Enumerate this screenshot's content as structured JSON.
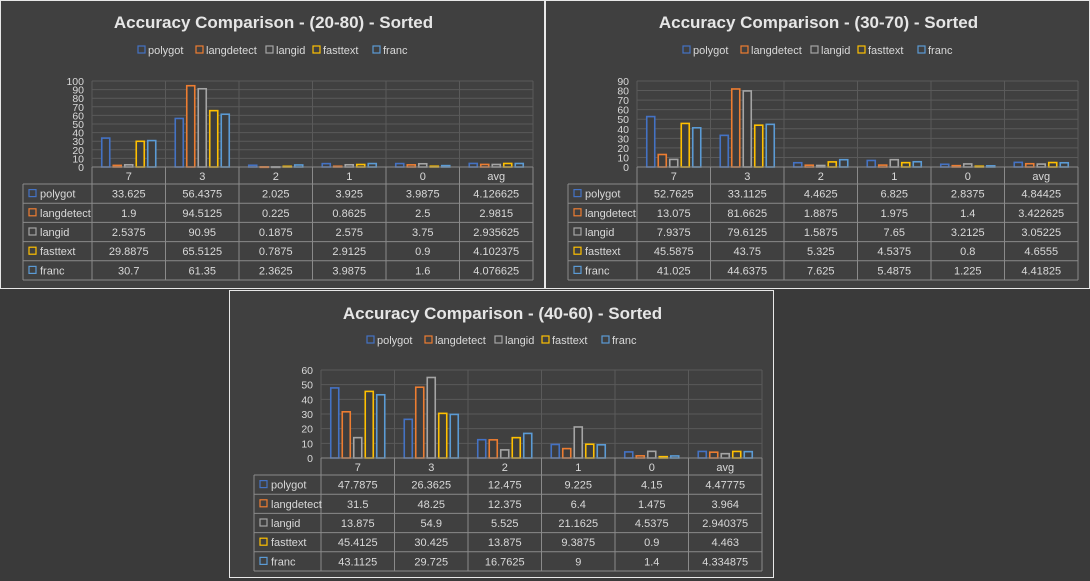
{
  "colors": {
    "polygot": "#4472c4",
    "langdetect": "#ed7d31",
    "langid": "#a5a5a5",
    "fasttext": "#ffc000",
    "franc": "#5b9bd5"
  },
  "series_names": [
    "polygot",
    "langdetect",
    "langid",
    "fasttext",
    "franc"
  ],
  "categories": [
    "7",
    "3",
    "2",
    "1",
    "0",
    "avg"
  ],
  "chart_data": [
    {
      "type": "bar",
      "title": "Accuracy Comparison - (20-80) - Sorted",
      "yticks": [
        0,
        10,
        20,
        30,
        40,
        50,
        60,
        70,
        80,
        90,
        100
      ],
      "ylim": [
        0,
        100
      ],
      "categories": [
        "7",
        "3",
        "2",
        "1",
        "0",
        "avg"
      ],
      "series": [
        {
          "name": "polygot",
          "values": [
            33.625,
            56.4375,
            2.025,
            3.925,
            3.9875,
            4.126625
          ],
          "labels": [
            "33.625",
            "56.4375",
            "2.025",
            "3.925",
            "3.9875",
            "4.126625"
          ]
        },
        {
          "name": "langdetect",
          "values": [
            1.9,
            94.5125,
            0.225,
            0.8625,
            2.5,
            2.9815
          ],
          "labels": [
            "1.9",
            "94.5125",
            "0.225",
            "0.8625",
            "2.5",
            "2.9815"
          ]
        },
        {
          "name": "langid",
          "values": [
            2.5375,
            90.95,
            0.1875,
            2.575,
            3.75,
            2.935625
          ],
          "labels": [
            "2.5375",
            "90.95",
            "0.1875",
            "2.575",
            "3.75",
            "2.935625"
          ]
        },
        {
          "name": "fasttext",
          "values": [
            29.8875,
            65.5125,
            0.7875,
            2.9125,
            0.9,
            4.102375
          ],
          "labels": [
            "29.8875",
            "65.5125",
            "0.7875",
            "2.9125",
            "0.9",
            "4.102375"
          ]
        },
        {
          "name": "franc",
          "values": [
            30.7,
            61.35,
            2.3625,
            3.9875,
            1.6,
            4.076625
          ],
          "labels": [
            "30.7",
            "61.35",
            "2.3625",
            "3.9875",
            "1.6",
            "4.076625"
          ]
        }
      ]
    },
    {
      "type": "bar",
      "title": "Accuracy Comparison - (30-70) - Sorted",
      "yticks": [
        0,
        10,
        20,
        30,
        40,
        50,
        60,
        70,
        80,
        90
      ],
      "ylim": [
        0,
        90
      ],
      "categories": [
        "7",
        "3",
        "2",
        "1",
        "0",
        "avg"
      ],
      "series": [
        {
          "name": "polygot",
          "values": [
            52.7625,
            33.1125,
            4.4625,
            6.825,
            2.8375,
            4.84425
          ],
          "labels": [
            "52.7625",
            "33.1125",
            "4.4625",
            "6.825",
            "2.8375",
            "4.84425"
          ]
        },
        {
          "name": "langdetect",
          "values": [
            13.075,
            81.6625,
            1.8875,
            1.975,
            1.4,
            3.422625
          ],
          "labels": [
            "13.075",
            "81.6625",
            "1.8875",
            "1.975",
            "1.4",
            "3.422625"
          ]
        },
        {
          "name": "langid",
          "values": [
            7.9375,
            79.6125,
            1.5875,
            7.65,
            3.2125,
            3.05225
          ],
          "labels": [
            "7.9375",
            "79.6125",
            "1.5875",
            "7.65",
            "3.2125",
            "3.05225"
          ]
        },
        {
          "name": "fasttext",
          "values": [
            45.5875,
            43.75,
            5.325,
            4.5375,
            0.8,
            4.6555
          ],
          "labels": [
            "45.5875",
            "43.75",
            "5.325",
            "4.5375",
            "0.8",
            "4.6555"
          ]
        },
        {
          "name": "franc",
          "values": [
            41.025,
            44.6375,
            7.625,
            5.4875,
            1.225,
            4.41825
          ],
          "labels": [
            "41.025",
            "44.6375",
            "7.625",
            "5.4875",
            "1.225",
            "4.41825"
          ]
        }
      ]
    },
    {
      "type": "bar",
      "title": "Accuracy Comparison - (40-60) - Sorted",
      "yticks": [
        0,
        10,
        20,
        30,
        40,
        50,
        60
      ],
      "ylim": [
        0,
        60
      ],
      "categories": [
        "7",
        "3",
        "2",
        "1",
        "0",
        "avg"
      ],
      "series": [
        {
          "name": "polygot",
          "values": [
            47.7875,
            26.3625,
            12.475,
            9.225,
            4.15,
            4.47775
          ],
          "labels": [
            "47.7875",
            "26.3625",
            "12.475",
            "9.225",
            "4.15",
            "4.47775"
          ]
        },
        {
          "name": "langdetect",
          "values": [
            31.5,
            48.25,
            12.375,
            6.4,
            1.475,
            3.964
          ],
          "labels": [
            "31.5",
            "48.25",
            "12.375",
            "6.4",
            "1.475",
            "3.964"
          ]
        },
        {
          "name": "langid",
          "values": [
            13.875,
            54.9,
            5.525,
            21.1625,
            4.5375,
            2.940375
          ],
          "labels": [
            "13.875",
            "54.9",
            "5.525",
            "21.1625",
            "4.5375",
            "2.940375"
          ]
        },
        {
          "name": "fasttext",
          "values": [
            45.4125,
            30.425,
            13.875,
            9.3875,
            0.9,
            4.463
          ],
          "labels": [
            "45.4125",
            "30.425",
            "13.875",
            "9.3875",
            "0.9",
            "4.463"
          ]
        },
        {
          "name": "franc",
          "values": [
            43.1125,
            29.725,
            16.7625,
            9,
            1.4,
            4.334875
          ],
          "labels": [
            "43.1125",
            "29.725",
            "16.7625",
            "9",
            "1.4",
            "4.334875"
          ]
        }
      ]
    }
  ]
}
